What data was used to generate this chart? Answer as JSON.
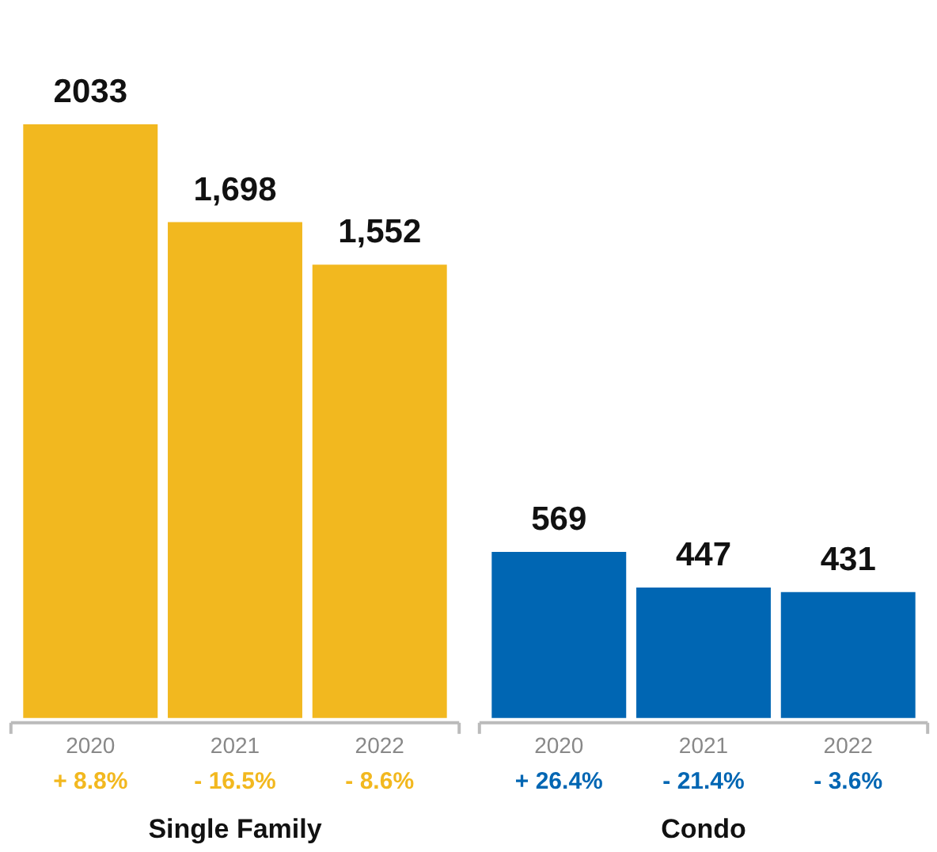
{
  "chart_data": {
    "type": "bar",
    "categories": [
      "2020",
      "2021",
      "2022",
      "2020",
      "2021",
      "2022"
    ],
    "series": [
      {
        "color": "#f2b81f",
        "values": [
          2033,
          1698,
          1552,
          null,
          null,
          null
        ],
        "value_labels": [
          "2033",
          "1,698",
          "1,552",
          null,
          null,
          null
        ]
      },
      {
        "color": "#0066b3",
        "values": [
          null,
          null,
          null,
          569,
          447,
          431
        ],
        "value_labels": [
          null,
          null,
          null,
          "569",
          "447",
          "431"
        ]
      }
    ],
    "annotations": [
      "+ 8.8%",
      "- 16.5%",
      "- 8.6%",
      "+ 26.4%",
      "- 21.4%",
      "- 3.6%",
      "Single Family",
      "Condo"
    ],
    "grid": false
  }
}
